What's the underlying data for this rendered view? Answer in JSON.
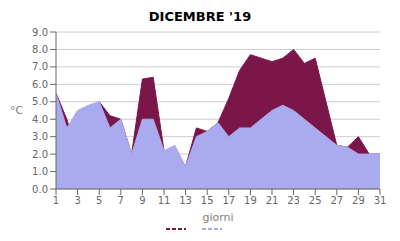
{
  "chart_data": {
    "type": "area",
    "title": "DICEMBRE  '19",
    "x_label": "giorni",
    "y_label": "°C",
    "x": [
      1,
      2,
      3,
      4,
      5,
      6,
      7,
      8,
      9,
      10,
      11,
      12,
      13,
      14,
      15,
      16,
      17,
      18,
      19,
      20,
      21,
      22,
      23,
      24,
      25,
      26,
      27,
      28,
      29,
      30,
      31
    ],
    "series": [
      {
        "color": "#7B1648",
        "values": [
          5.5,
          4.0,
          2.0,
          3.0,
          5.0,
          4.2,
          4.0,
          2.0,
          6.3,
          6.4,
          2.2,
          2.0,
          1.3,
          3.5,
          3.3,
          3.8,
          5.2,
          6.8,
          7.7,
          7.5,
          7.3,
          7.5,
          8.0,
          7.2,
          7.5,
          5.0,
          2.5,
          2.4,
          3.0,
          2.0,
          2.0
        ]
      },
      {
        "color": "#AAAAEE",
        "values": [
          5.5,
          3.5,
          4.5,
          4.8,
          5.0,
          3.5,
          4.0,
          2.0,
          4.0,
          4.0,
          2.2,
          2.5,
          1.3,
          3.0,
          3.3,
          3.8,
          3.0,
          3.5,
          3.5,
          4.0,
          4.5,
          4.8,
          4.5,
          4.0,
          3.5,
          3.0,
          2.5,
          2.4,
          2.0,
          2.0,
          2.0
        ]
      }
    ],
    "xlim": [
      1,
      31
    ],
    "xticks": [
      1,
      3,
      5,
      7,
      9,
      11,
      13,
      15,
      17,
      19,
      21,
      23,
      25,
      27,
      29,
      31
    ],
    "ylim": [
      0.0,
      9.0
    ],
    "yticks": [
      {
        "value": 0,
        "label": "0.0"
      },
      {
        "value": 1,
        "label": "1.0"
      },
      {
        "value": 2,
        "label": "2.0"
      },
      {
        "value": 3,
        "label": "3.0"
      },
      {
        "value": 4,
        "label": "4.0"
      },
      {
        "value": 5,
        "label": "5.0"
      },
      {
        "value": 6,
        "label": "6.0"
      },
      {
        "value": 7,
        "label": "7.0"
      },
      {
        "value": 8,
        "label": "8.0"
      },
      {
        "value": 9,
        "label": "9.0"
      }
    ],
    "grid": "y",
    "legend": "bottom"
  }
}
